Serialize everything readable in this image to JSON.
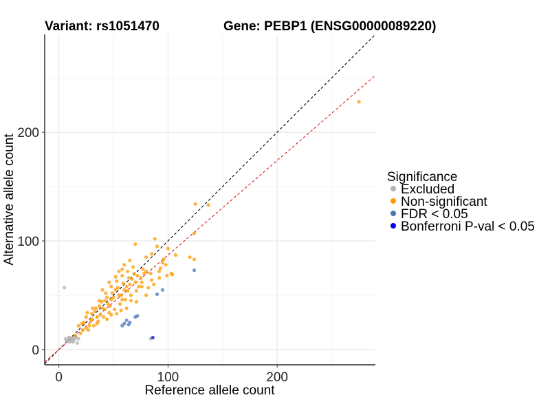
{
  "chart_data": {
    "type": "scatter",
    "title_left": "Variant: rs1051470",
    "title_right": "Gene: PEBP1 (ENSG00000089220)",
    "xlabel": "Reference allele count",
    "ylabel": "Alternative allele count",
    "xlim": [
      -13,
      290
    ],
    "ylim": [
      -14,
      290
    ],
    "x_ticks": [
      0,
      100,
      200
    ],
    "y_ticks": [
      0,
      100,
      200
    ],
    "x_minor_grid": [
      50,
      150,
      250
    ],
    "y_minor_grid": [
      50,
      150,
      250
    ],
    "legend": {
      "title": "Significance",
      "placement": "right",
      "entries": [
        {
          "label": "Excluded",
          "color": "#b3b3b3"
        },
        {
          "label": "Non-significant",
          "color": "#ff9900"
        },
        {
          "label": "FDR < 0.05",
          "color": "#4a76b8"
        },
        {
          "label": "Bonferroni P-val < 0.05",
          "color": "#0000ee"
        }
      ]
    },
    "reference_lines": [
      {
        "name": "identity",
        "slope": 1,
        "intercept": 0,
        "color": "#000000",
        "style": "dashed"
      },
      {
        "name": "fit",
        "slope": 0.87,
        "intercept": 0,
        "color": "#e31a1c",
        "style": "dashed"
      }
    ],
    "series": [
      {
        "name": "Excluded",
        "color": "#b3b3b3",
        "points": [
          [
            5,
            57
          ],
          [
            6,
            10
          ],
          [
            8,
            8
          ],
          [
            9,
            9
          ],
          [
            10,
            11
          ],
          [
            11,
            9
          ],
          [
            12,
            8
          ],
          [
            13,
            10
          ],
          [
            14,
            9
          ],
          [
            15,
            12
          ],
          [
            17,
            6
          ],
          [
            7,
            8
          ],
          [
            10,
            7
          ],
          [
            13,
            7
          ],
          [
            16,
            11
          ],
          [
            84,
            10
          ],
          [
            18,
            10
          ],
          [
            9,
            11
          ]
        ]
      },
      {
        "name": "Non-significant",
        "color": "#ff9900",
        "points": [
          [
            275,
            228
          ],
          [
            125,
            134
          ],
          [
            137,
            133
          ],
          [
            124,
            107
          ],
          [
            120,
            85
          ],
          [
            124,
            83
          ],
          [
            107,
            87
          ],
          [
            104,
            69
          ],
          [
            103,
            70
          ],
          [
            99,
            68
          ],
          [
            100,
            93
          ],
          [
            98,
            78
          ],
          [
            95,
            80
          ],
          [
            93,
            75
          ],
          [
            90,
            95
          ],
          [
            88,
            102
          ],
          [
            92,
            66
          ],
          [
            85,
            88
          ],
          [
            80,
            85
          ],
          [
            78,
            70
          ],
          [
            73,
            58
          ],
          [
            76,
            62
          ],
          [
            70,
            97
          ],
          [
            82,
            57
          ],
          [
            87,
            60
          ],
          [
            55,
            72
          ],
          [
            60,
            78
          ],
          [
            65,
            82
          ],
          [
            20,
            15
          ],
          [
            22,
            18
          ],
          [
            25,
            20
          ],
          [
            18,
            22
          ],
          [
            30,
            28
          ],
          [
            35,
            30
          ],
          [
            40,
            38
          ],
          [
            45,
            42
          ],
          [
            50,
            48
          ],
          [
            55,
            50
          ],
          [
            60,
            55
          ],
          [
            65,
            60
          ],
          [
            70,
            62
          ],
          [
            75,
            66
          ],
          [
            80,
            72
          ],
          [
            84,
            70
          ],
          [
            15,
            13
          ],
          [
            23,
            25
          ],
          [
            28,
            22
          ],
          [
            33,
            35
          ],
          [
            38,
            32
          ],
          [
            42,
            45
          ],
          [
            47,
            40
          ],
          [
            52,
            55
          ],
          [
            57,
            50
          ],
          [
            62,
            58
          ],
          [
            67,
            65
          ],
          [
            72,
            68
          ],
          [
            77,
            74
          ],
          [
            32,
            22
          ],
          [
            36,
            26
          ],
          [
            41,
            30
          ],
          [
            46,
            34
          ],
          [
            51,
            37
          ],
          [
            56,
            42
          ],
          [
            61,
            46
          ],
          [
            66,
            50
          ],
          [
            71,
            54
          ],
          [
            76,
            58
          ],
          [
            26,
            34
          ],
          [
            31,
            38
          ],
          [
            37,
            45
          ],
          [
            43,
            52
          ],
          [
            48,
            58
          ],
          [
            53,
            63
          ],
          [
            58,
            68
          ],
          [
            63,
            72
          ],
          [
            68,
            76
          ],
          [
            25,
            30
          ],
          [
            30,
            33
          ],
          [
            34,
            38
          ],
          [
            39,
            44
          ],
          [
            44,
            48
          ],
          [
            49,
            52
          ],
          [
            54,
            57
          ],
          [
            59,
            61
          ],
          [
            64,
            66
          ],
          [
            69,
            70
          ],
          [
            27,
            18
          ],
          [
            35,
            24
          ],
          [
            44,
            28
          ],
          [
            53,
            33
          ],
          [
            62,
            38
          ],
          [
            71,
            44
          ],
          [
            80,
            50
          ],
          [
            40,
            55
          ],
          [
            46,
            62
          ],
          [
            52,
            67
          ],
          [
            58,
            74
          ],
          [
            21,
            24
          ],
          [
            29,
            26
          ],
          [
            37,
            40
          ],
          [
            42,
            37
          ],
          [
            48,
            46
          ],
          [
            58,
            46
          ],
          [
            63,
            54
          ],
          [
            48,
            32
          ],
          [
            57,
            36
          ],
          [
            66,
            45
          ],
          [
            85,
            64
          ],
          [
            92,
            72
          ],
          [
            96,
            83
          ]
        ]
      },
      {
        "name": "FDR < 0.05",
        "color": "#4a76b8",
        "points": [
          [
            124,
            73
          ],
          [
            95,
            55
          ],
          [
            70,
            30
          ],
          [
            64,
            23
          ],
          [
            60,
            24
          ],
          [
            65,
            25
          ],
          [
            72,
            31
          ],
          [
            90,
            51
          ],
          [
            58,
            22
          ],
          [
            62,
            27
          ]
        ]
      },
      {
        "name": "Bonferroni P-val < 0.05",
        "color": "#0000ee",
        "points": [
          [
            86,
            11
          ]
        ]
      }
    ]
  }
}
